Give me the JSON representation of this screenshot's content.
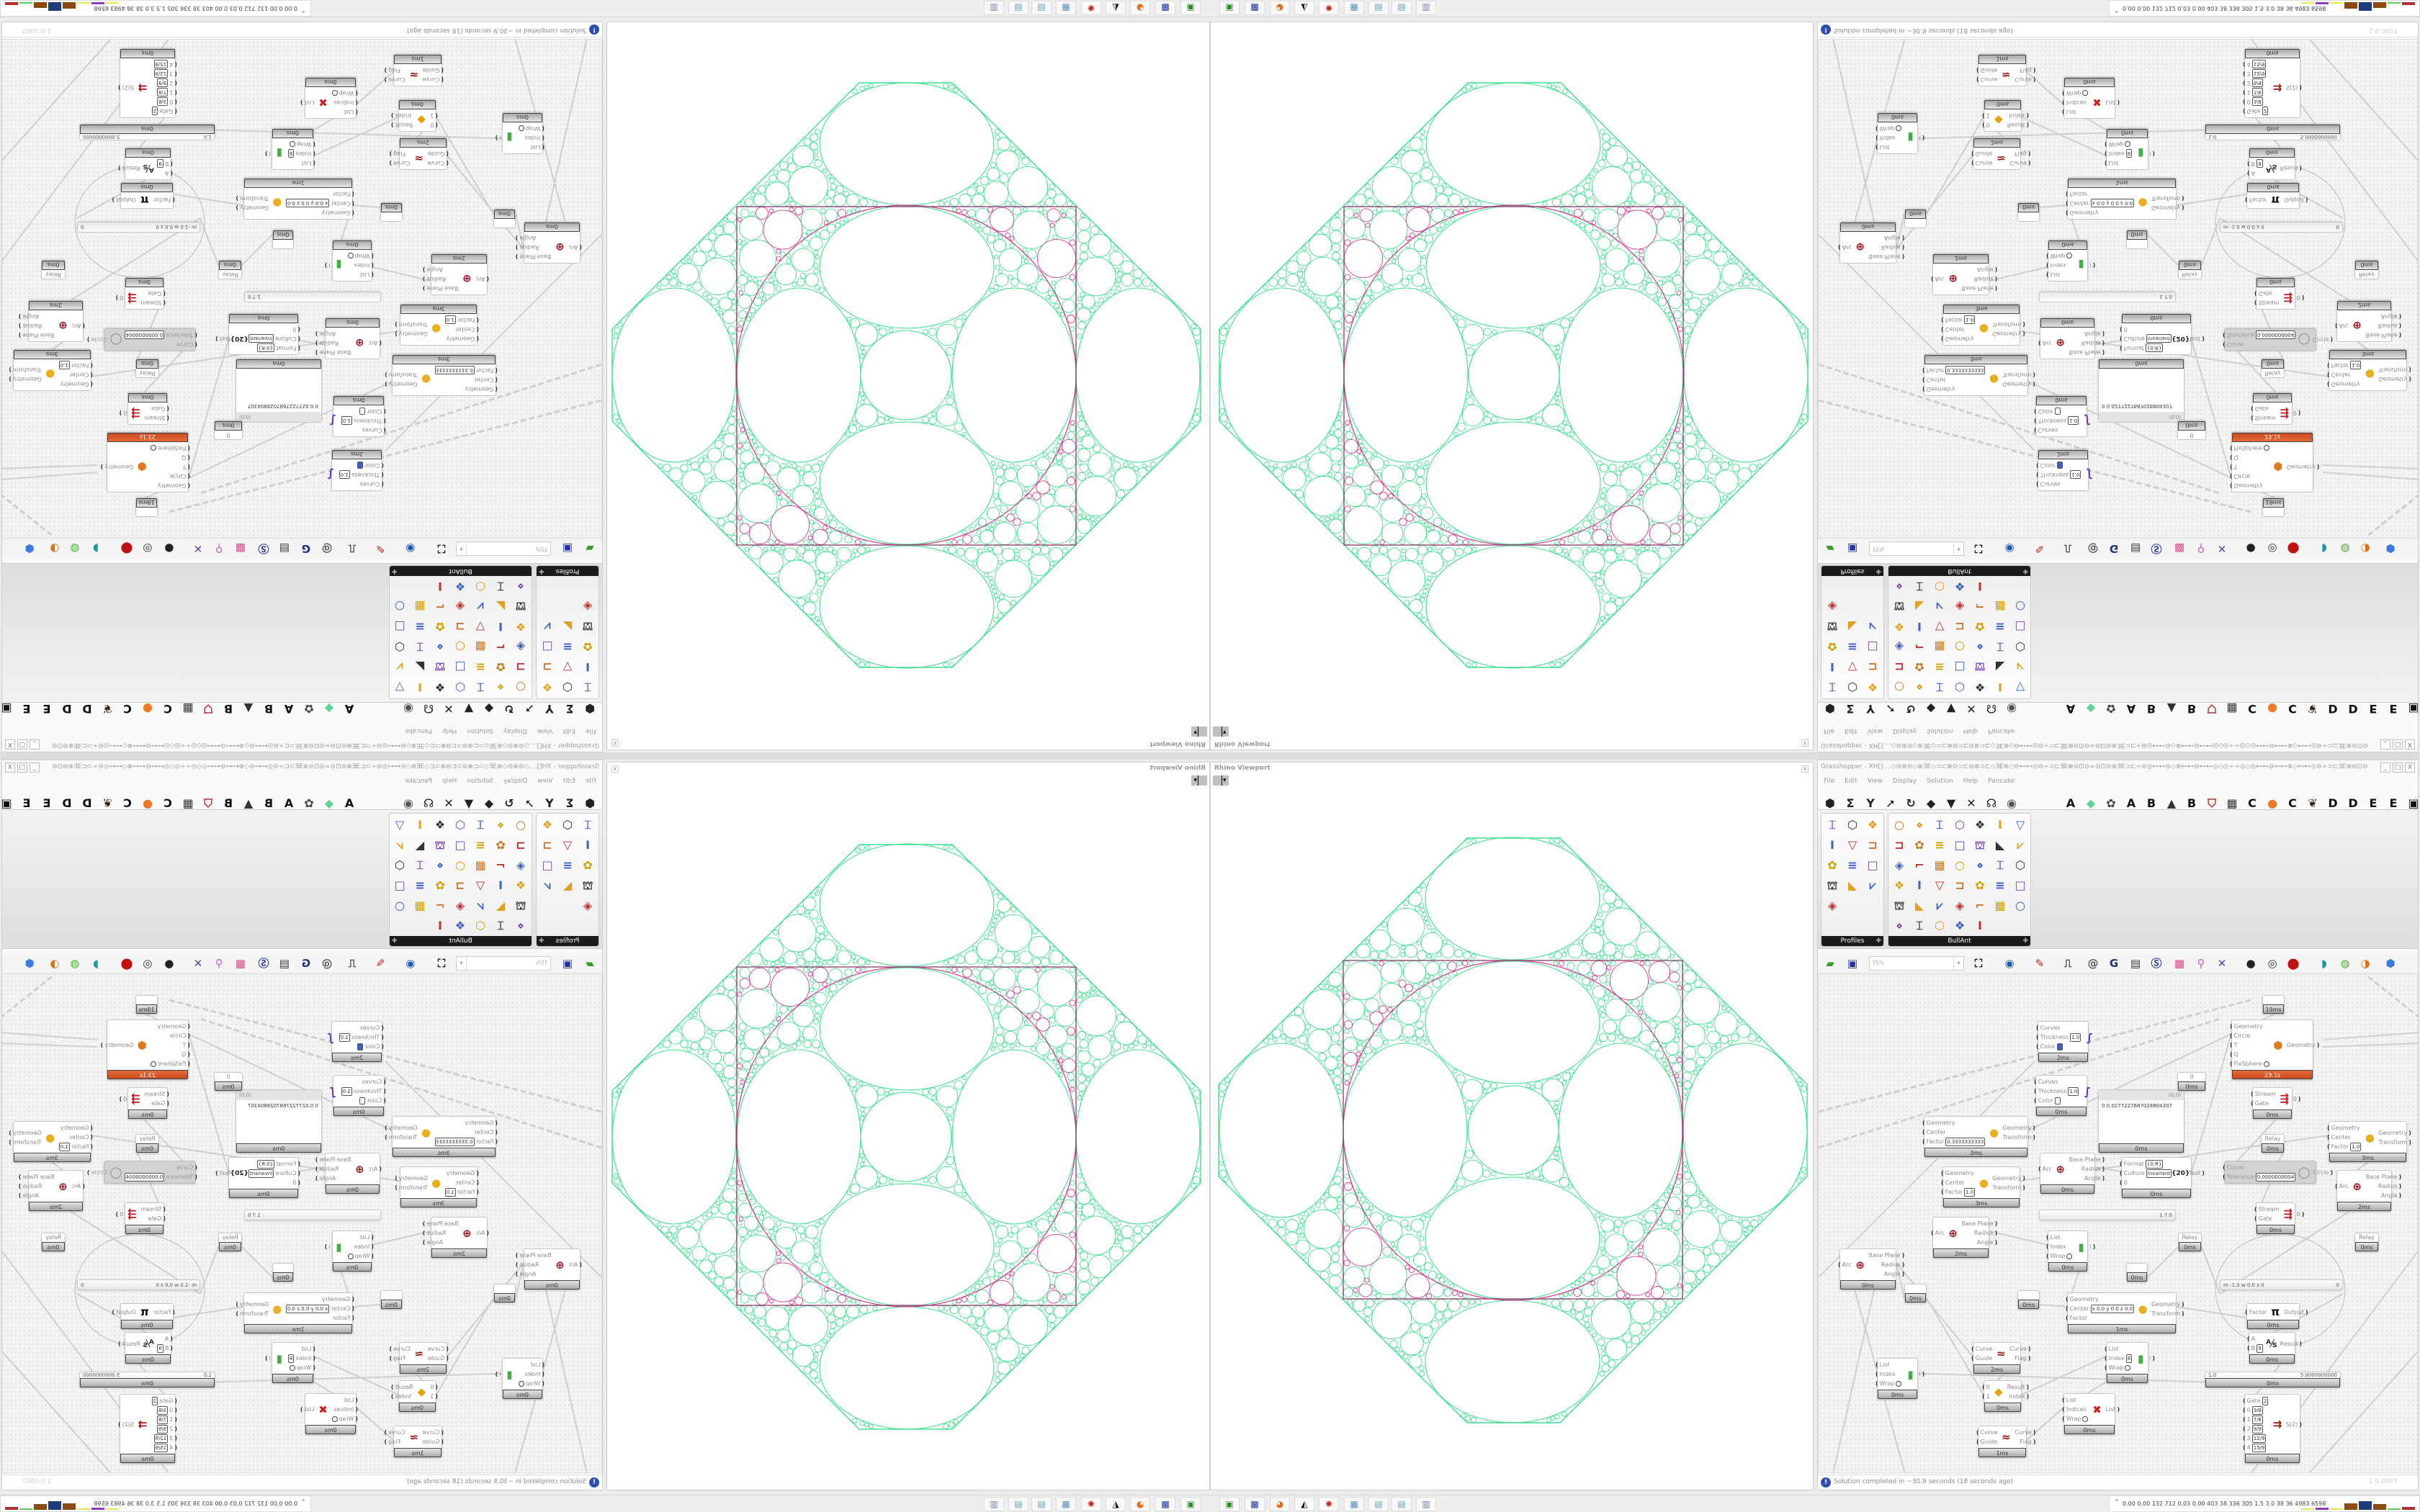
{
  "rhino": {
    "title": "Rhino Viewport",
    "close": "x"
  },
  "colors": {
    "geometry": "#3ee08f",
    "selection": "#d63a8f",
    "boundary_square": "#8b3a6b",
    "warning_component": "#d9542b",
    "info_icon": "#2c4fb0"
  },
  "gh": {
    "title": "Grasshopper - XH[]....◇⊖⊕⊖◇⊕∃E◇⊃⊏⊗⊖⊃⊏⊖⊗⊃⊏◇∃E⊕◇⊖⊷⊷◎⊖÷⊃⊏∃E⊗⊖⊡⊖∞⊖⊡⊖⊗∃E⊃⊏÷⊖◎⊷⊷⊖◇⊕⊷⊷⊖⊷⊷◎◇◎÷÷◎◇◎⊷⊷⊖⊷⊷⊕◇⊷⊷◎⊖÷⊃⊏∃E⊗⊖⊡⊖∞⊖...",
    "window_buttons": [
      "_",
      "□",
      "X"
    ],
    "menu": [
      "File",
      "Edit",
      "View",
      "Display",
      "Solution",
      "Help",
      "Pancake"
    ],
    "tabs_left": [
      "params-icon",
      "maths-icon",
      "sets-icon",
      "vector-icon",
      "curve-icon",
      "surface-icon",
      "mesh-icon",
      "intersect-icon",
      "transform-icon",
      "display-icon"
    ],
    "tabs_right": [
      {
        "label": "A"
      },
      {
        "icon": "leaf-icon"
      },
      {
        "icon": "flower-icon"
      },
      {
        "label": "A"
      },
      {
        "label": "B"
      },
      {
        "icon": "mountain-icon"
      },
      {
        "label": "B"
      },
      {
        "icon": "shield-icon"
      },
      {
        "icon": "grid-icon"
      },
      {
        "label": "C"
      },
      {
        "icon": "orange-circle-icon"
      },
      {
        "label": "C"
      },
      {
        "icon": "bird-icon"
      },
      {
        "label": "D"
      },
      {
        "label": "D"
      },
      {
        "label": "E"
      },
      {
        "label": "E"
      },
      {
        "icon": "grid-box-icon"
      }
    ],
    "palette": {
      "groups": [
        {
          "name": "Profiles",
          "icons": [
            "ibeam-profile-icon",
            "channel-profile-icon",
            "angle-profile-icon",
            "ibeam-profile-icon",
            "ring-profile-icon",
            "i-section-icon",
            "box-section-icon",
            "i-section-icon",
            "box-section-icon",
            "angle-section-icon",
            "ibeam-profile-icon",
            "ring-profile-icon",
            "point-icon"
          ]
        },
        {
          "name": "BullAnt",
          "icons": [
            "solid-icon",
            "flower-icon",
            "vgrid-icon",
            "triangle-icon",
            "dims-icon",
            "frame-icon",
            "frame2-icon",
            "ring-icon",
            "plane-icon",
            "bars-icon",
            "poly-icon",
            "vtruss-icon",
            "lock-icon",
            "box-icon",
            "ring-icon",
            "cube-icon",
            "poly-icon",
            "poly-icon",
            "vtruss-icon",
            "lock-icon",
            "frame2-icon",
            "gear-icon",
            "arc-icon",
            "scatter-icon",
            "poly-icon",
            "truss-icon",
            "lock-icon",
            "cube-icon",
            "solid-icon",
            "arc-icon",
            "dims-icon",
            "poly-icon",
            "truss-icon",
            "lock-icon",
            "diamond-icon",
            "panel-icon",
            "poly-icon",
            "dims-icon",
            "frame-icon",
            "rainbow-icon"
          ]
        }
      ]
    },
    "toolbar": {
      "zoom": "75%",
      "icons": [
        "new-file-icon",
        "save-icon",
        "zoom-extents-icon",
        "preview-eye-icon",
        "sketch-icon",
        "plugin-icon",
        "email-icon",
        "gha-icon",
        "window-icon",
        "search-s-icon",
        "package-icon",
        "balloon-icon",
        "cross-wires-icon",
        "bulb-shade-icon",
        "wireframe-icon",
        "shaded-icon",
        "teal-icon",
        "green-icon",
        "orange-sphere-icon",
        "blue-gem-icon"
      ]
    },
    "components": [
      {
        "type": "comp",
        "icon": "curve-preview-icon",
        "inputs": [
          {
            "label": "Curves"
          },
          {
            "label": "Thickness",
            "value": "1.0"
          },
          {
            "label": "Color",
            "swatch": "#3b5bdb"
          }
        ],
        "outputs": [],
        "time": "2ms"
      },
      {
        "type": "comp",
        "icon": "curve-preview-icon",
        "inputs": [
          {
            "label": "Curves"
          },
          {
            "label": "Thickness",
            "value": "1.0"
          },
          {
            "label": "Color",
            "swatch": "#ffffff"
          }
        ],
        "outputs": [],
        "time": "0ms"
      },
      {
        "type": "comp",
        "icon": "scale-icon",
        "inputs": [
          {
            "label": "Geometry"
          },
          {
            "label": "Center"
          },
          {
            "label": "Factor",
            "value": "0.3333333333"
          }
        ],
        "outputs": [
          "Geometry",
          "Transform"
        ],
        "time": "3ms"
      },
      {
        "type": "comp",
        "icon": "scale-icon",
        "inputs": [
          {
            "label": "Geometry"
          },
          {
            "label": "Center"
          },
          {
            "label": "Factor",
            "value": "1.0"
          }
        ],
        "outputs": [
          "Geometry",
          "Transform"
        ],
        "time": "3ms"
      },
      {
        "type": "comp",
        "icon": "arc-icon",
        "inputs": [
          {
            "label": "Arc"
          }
        ],
        "outputs": [
          "Base Plane",
          "Radius",
          "Angle"
        ],
        "time": "0ms"
      },
      {
        "type": "panel",
        "header": "(0;0)",
        "text": "0  0.0277227687028804307"
      },
      {
        "type": "comp",
        "icon": "format-icon",
        "inputs": [
          {
            "label": "Format",
            "value": "{0:R}"
          },
          {
            "label": "Culture",
            "value": "Invariant"
          },
          {
            "label": "0"
          }
        ],
        "outputs": [
          "Text"
        ],
        "time": "0ms"
      },
      {
        "type": "small",
        "label": "0",
        "time": "0ms"
      },
      {
        "type": "comp",
        "icon": "kangaroo-icon",
        "state": "warning",
        "inputs": [
          {
            "label": "Geometry"
          },
          {
            "label": "Circle"
          },
          {
            "label": "T"
          },
          {
            "label": "Q"
          },
          {
            "label": "FixSphere",
            "toggle": true
          }
        ],
        "outputs": [
          "Geometry"
        ],
        "time": "23.1s"
      },
      {
        "type": "comp",
        "icon": "stream-gate-icon",
        "inputs": [
          {
            "label": "Stream"
          },
          {
            "label": "Gate"
          }
        ],
        "outputs": [
          "0"
        ],
        "time": "0ms"
      },
      {
        "type": "small",
        "label": "Relay",
        "time": "0ms"
      },
      {
        "type": "comp",
        "icon": "circle-fit-icon",
        "state": "disabled",
        "inputs": [
          {
            "label": "Curve"
          },
          {
            "label": "Tolerance",
            "value": "0.0000000004"
          }
        ],
        "outputs": [
          "Circle"
        ]
      },
      {
        "type": "comp",
        "icon": "scale-icon",
        "inputs": [
          {
            "label": "Geometry"
          },
          {
            "label": "Center"
          },
          {
            "label": "Factor",
            "value": "1.0"
          }
        ],
        "outputs": [
          "Geometry",
          "Transform"
        ],
        "time": "3ms"
      },
      {
        "type": "comp",
        "icon": "arc-icon",
        "inputs": [
          {
            "label": "Arc"
          }
        ],
        "outputs": [
          "Base Plane",
          "Radius",
          "Angle"
        ],
        "time": "2ms"
      },
      {
        "type": "slider",
        "label": "",
        "value": "1 7 0"
      },
      {
        "type": "small",
        "label": "",
        "time": "19ms"
      },
      {
        "type": "comp",
        "icon": "stream-gate-icon",
        "inputs": [
          {
            "label": "Stream"
          },
          {
            "label": "Gate"
          }
        ],
        "outputs": [
          "0"
        ],
        "time": "0ms"
      },
      {
        "type": "comp",
        "icon": "arc-icon",
        "inputs": [
          {
            "label": "Arc"
          }
        ],
        "outputs": [
          "Base Plane",
          "Radius",
          "Angle"
        ],
        "time": "2ms"
      },
      {
        "type": "comp",
        "icon": "arc-icon",
        "inputs": [
          {
            "label": "Arc"
          }
        ],
        "outputs": [
          "Base Plane",
          "Radius",
          "Angle"
        ],
        "time": "0ms"
      },
      {
        "type": "small",
        "label": "",
        "time": "0ms"
      },
      {
        "type": "small",
        "label": "",
        "time": "0ms"
      },
      {
        "type": "comp",
        "icon": "list-item-icon",
        "inputs": [
          {
            "label": "List"
          },
          {
            "label": "Index"
          },
          {
            "label": "Wrap",
            "toggle": true
          }
        ],
        "outputs": [
          "i"
        ],
        "time": "0ms"
      },
      {
        "type": "small",
        "label": "",
        "time": "0ms"
      },
      {
        "type": "comp",
        "icon": "scale-icon",
        "inputs": [
          {
            "label": "Geometry"
          },
          {
            "label": "Center",
            "value": "x 0.0 y 0.0 z 0.0"
          },
          {
            "label": "Factor"
          }
        ],
        "outputs": [
          "Geometry",
          "Transform"
        ],
        "time": "1ms"
      },
      {
        "type": "small",
        "label": "Relay",
        "time": "0ms"
      },
      {
        "type": "small",
        "label": "Relay",
        "time": "0ms"
      },
      {
        "type": "slider",
        "label": "m -1.0  w 0.0  z 0",
        "value": "0"
      },
      {
        "type": "comp",
        "icon": "pi-icon",
        "inputs": [
          {
            "label": "Factor"
          }
        ],
        "outputs": [
          "Output"
        ],
        "time": "0ms"
      },
      {
        "type": "comp",
        "icon": "division-icon",
        "inputs": [
          {
            "label": "A"
          },
          {
            "label": "B",
            "value": "9"
          }
        ],
        "outputs": [
          "Result"
        ],
        "time": "0ms"
      },
      {
        "type": "slider",
        "label": "1.0",
        "value": "5.0000000000",
        "time": "0ms"
      },
      {
        "type": "comp",
        "icon": "stream-filter-icon",
        "inputs": [
          {
            "label": "Gate",
            "value": "2"
          },
          {
            "label": "0",
            "value": "3/8"
          },
          {
            "label": "1",
            "value": "7/8"
          },
          {
            "label": "2",
            "value": "9/9"
          },
          {
            "label": "3",
            "value": "12/9"
          },
          {
            "label": "4",
            "value": "15/9"
          }
        ],
        "outputs": [
          "S(2)"
        ],
        "time": "0ms"
      },
      {
        "type": "comp",
        "icon": "list-item-icon",
        "inputs": [
          {
            "label": "List"
          },
          {
            "label": "Index"
          },
          {
            "label": "Wrap",
            "toggle": true
          }
        ],
        "outputs": [
          "i"
        ],
        "time": "0ms"
      },
      {
        "type": "comp",
        "icon": "flip-curve-icon",
        "inputs": [
          {
            "label": "Curve"
          },
          {
            "label": "Guide"
          }
        ],
        "outputs": [
          "Curve",
          "Flag"
        ],
        "time": "2ms"
      },
      {
        "type": "comp",
        "icon": "pick-icon",
        "inputs": [
          {
            "label": "0"
          },
          {
            "label": "1"
          }
        ],
        "outputs": [
          "Result",
          "Index"
        ],
        "time": "0ms"
      },
      {
        "type": "comp",
        "icon": "flip-curve-icon",
        "inputs": [
          {
            "label": "Curve"
          },
          {
            "label": "Guide"
          }
        ],
        "outputs": [
          "Curve",
          "Flag"
        ],
        "time": "1ms"
      },
      {
        "type": "comp",
        "icon": "list-item-icon",
        "inputs": [
          {
            "label": "List"
          },
          {
            "label": "Index",
            "value": "8"
          },
          {
            "label": "Wrap",
            "toggle": true
          }
        ],
        "outputs": [
          "i"
        ],
        "time": "0ms"
      },
      {
        "type": "comp",
        "icon": "cull-index-icon",
        "inputs": [
          {
            "label": "List"
          },
          {
            "label": "Indices"
          },
          {
            "label": "Wrap",
            "toggle": true
          }
        ],
        "outputs": [
          "List"
        ],
        "time": "0ms"
      }
    ],
    "status": {
      "message": "Solution completed in ~30.9 seconds (18 seconds ago)",
      "version": "1.0.0007"
    }
  },
  "taskbar": {
    "apps": [
      "terminal-icon",
      "floppy-64-icon",
      "firefox-icon",
      "inkscape-icon",
      "red-app-icon",
      "calculator-icon",
      "notepad-icon",
      "notepad-icon",
      "document-icon"
    ],
    "tray_stats": "0.00 0.00 132  712  0.03 0.00 403   38   336  305   1.5   3.0   38    36  4983 6598"
  }
}
